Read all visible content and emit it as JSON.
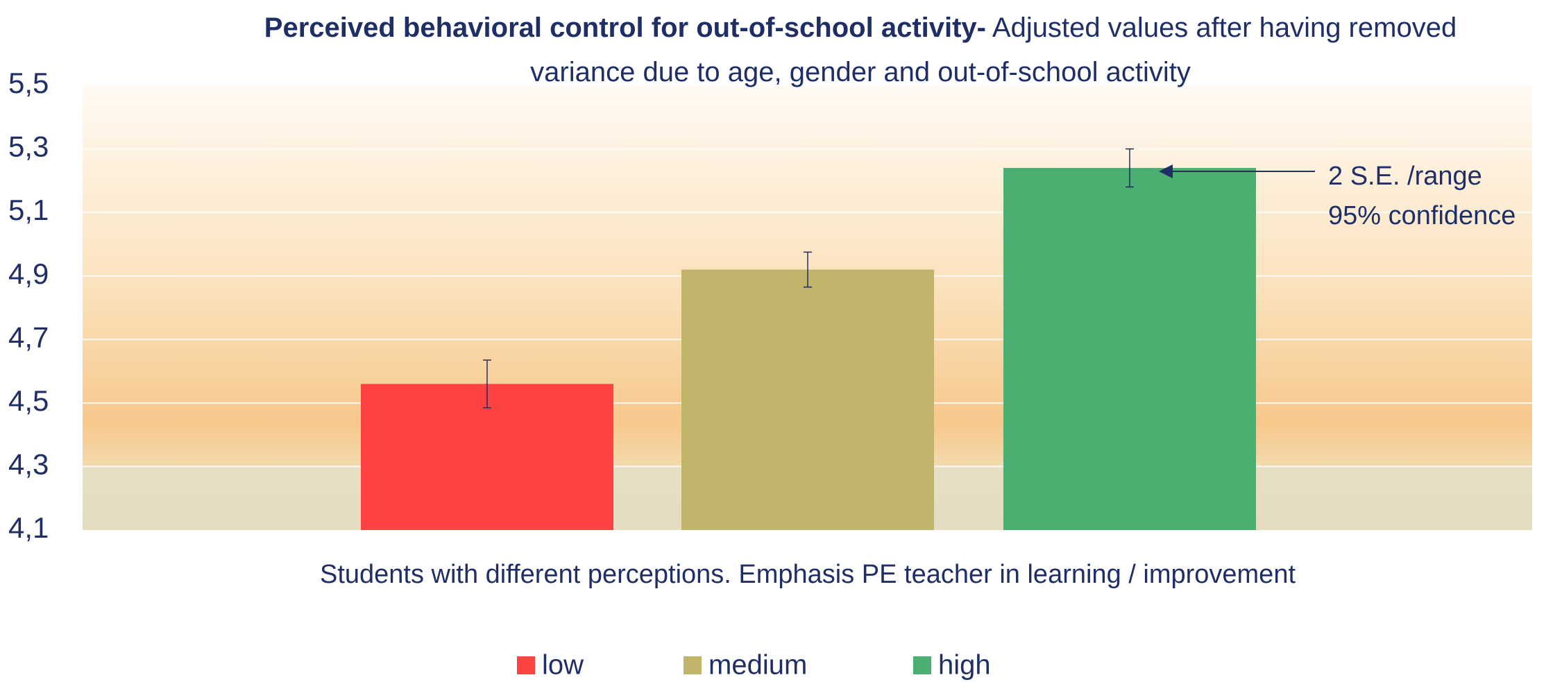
{
  "chart_data": {
    "type": "bar",
    "title": "Perceived behavioral control for out-of-school activity-",
    "subtitle": "Adjusted values after having removed variance due to age, gender and out-of-school activity",
    "x_label": "Students with different perceptions. Emphasis PE teacher in learning / improvement",
    "annotations": [
      "2 S.E. /range",
      "95% confidence"
    ],
    "categories": [
      null
    ],
    "series": [
      {
        "name": "low",
        "color": "#ff4343",
        "values": [
          4.56
        ],
        "errors": [
          0.075
        ]
      },
      {
        "name": "medium",
        "color": "#c0b46b",
        "values": [
          4.92
        ],
        "errors": [
          0.055
        ]
      },
      {
        "name": "high",
        "color": "#4caf72",
        "values": [
          5.24
        ],
        "errors": [
          0.06
        ]
      }
    ],
    "ylim": [
      4.1,
      5.5
    ],
    "yticks": [
      {
        "value": 4.1,
        "label": "4,1"
      },
      {
        "value": 4.3,
        "label": "4,3"
      },
      {
        "value": 4.5,
        "label": "4,5"
      },
      {
        "value": 4.7,
        "label": "4,7"
      },
      {
        "value": 4.9,
        "label": "4,9"
      },
      {
        "value": 5.1,
        "label": "5,1"
      },
      {
        "value": 5.3,
        "label": "5,3"
      },
      {
        "value": 5.5,
        "label": "5,5"
      }
    ],
    "grid": true,
    "legend": "bottom"
  }
}
